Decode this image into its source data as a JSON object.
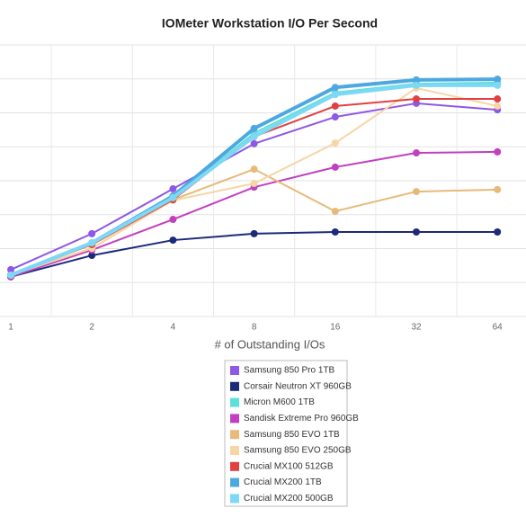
{
  "chart_data": {
    "type": "line",
    "title": "IOMeter Workstation I/O Per Second",
    "x_label": "# of Outstanding I/Os",
    "categories": [
      "1",
      "2",
      "4",
      "8",
      "16",
      "32",
      "64"
    ],
    "ylim": [
      0,
      8
    ],
    "yticks": [
      0,
      1,
      2,
      3,
      4,
      5,
      6,
      7,
      8
    ],
    "grid": true,
    "series": [
      {
        "name": "Samsung 850 Pro 1TB",
        "color": "#8e57e6",
        "values": [
          1.38,
          2.44,
          3.76,
          5.09,
          5.88,
          6.28,
          6.09
        ]
      },
      {
        "name": "Corsair Neutron XT 960GB",
        "color": "#1c2a7a",
        "values": [
          1.17,
          1.8,
          2.25,
          2.44,
          2.49,
          2.49,
          2.49
        ]
      },
      {
        "name": "Micron M600 1TB",
        "color": "#5ee0d6",
        "values": [
          1.22,
          2.17,
          3.5,
          5.4,
          6.6,
          6.86,
          6.89
        ]
      },
      {
        "name": "Sandisk Extreme Pro 960GB",
        "color": "#c23fc0",
        "values": [
          1.17,
          1.96,
          2.86,
          3.81,
          4.4,
          4.82,
          4.85
        ]
      },
      {
        "name": "Samsung 850 EVO 1TB",
        "color": "#e8b978",
        "values": [
          1.22,
          2.01,
          3.44,
          4.34,
          3.1,
          3.68,
          3.74
        ]
      },
      {
        "name": "Samsung 850 EVO 250GB",
        "color": "#f7d5a5",
        "values": [
          1.22,
          2.01,
          3.42,
          3.92,
          5.11,
          6.73,
          6.2
        ]
      },
      {
        "name": "Crucial MX100 512GB",
        "color": "#e04040",
        "values": [
          1.22,
          2.12,
          3.44,
          5.3,
          6.2,
          6.41,
          6.41
        ]
      },
      {
        "name": "Crucial MX200 1TB",
        "color": "#4da8e0",
        "values": [
          1.22,
          2.17,
          3.55,
          5.54,
          6.75,
          6.97,
          6.99
        ]
      },
      {
        "name": "Crucial MX200 500GB",
        "color": "#7dd8f5",
        "values": [
          1.22,
          2.17,
          3.5,
          5.3,
          6.54,
          6.81,
          6.81
        ]
      }
    ]
  }
}
